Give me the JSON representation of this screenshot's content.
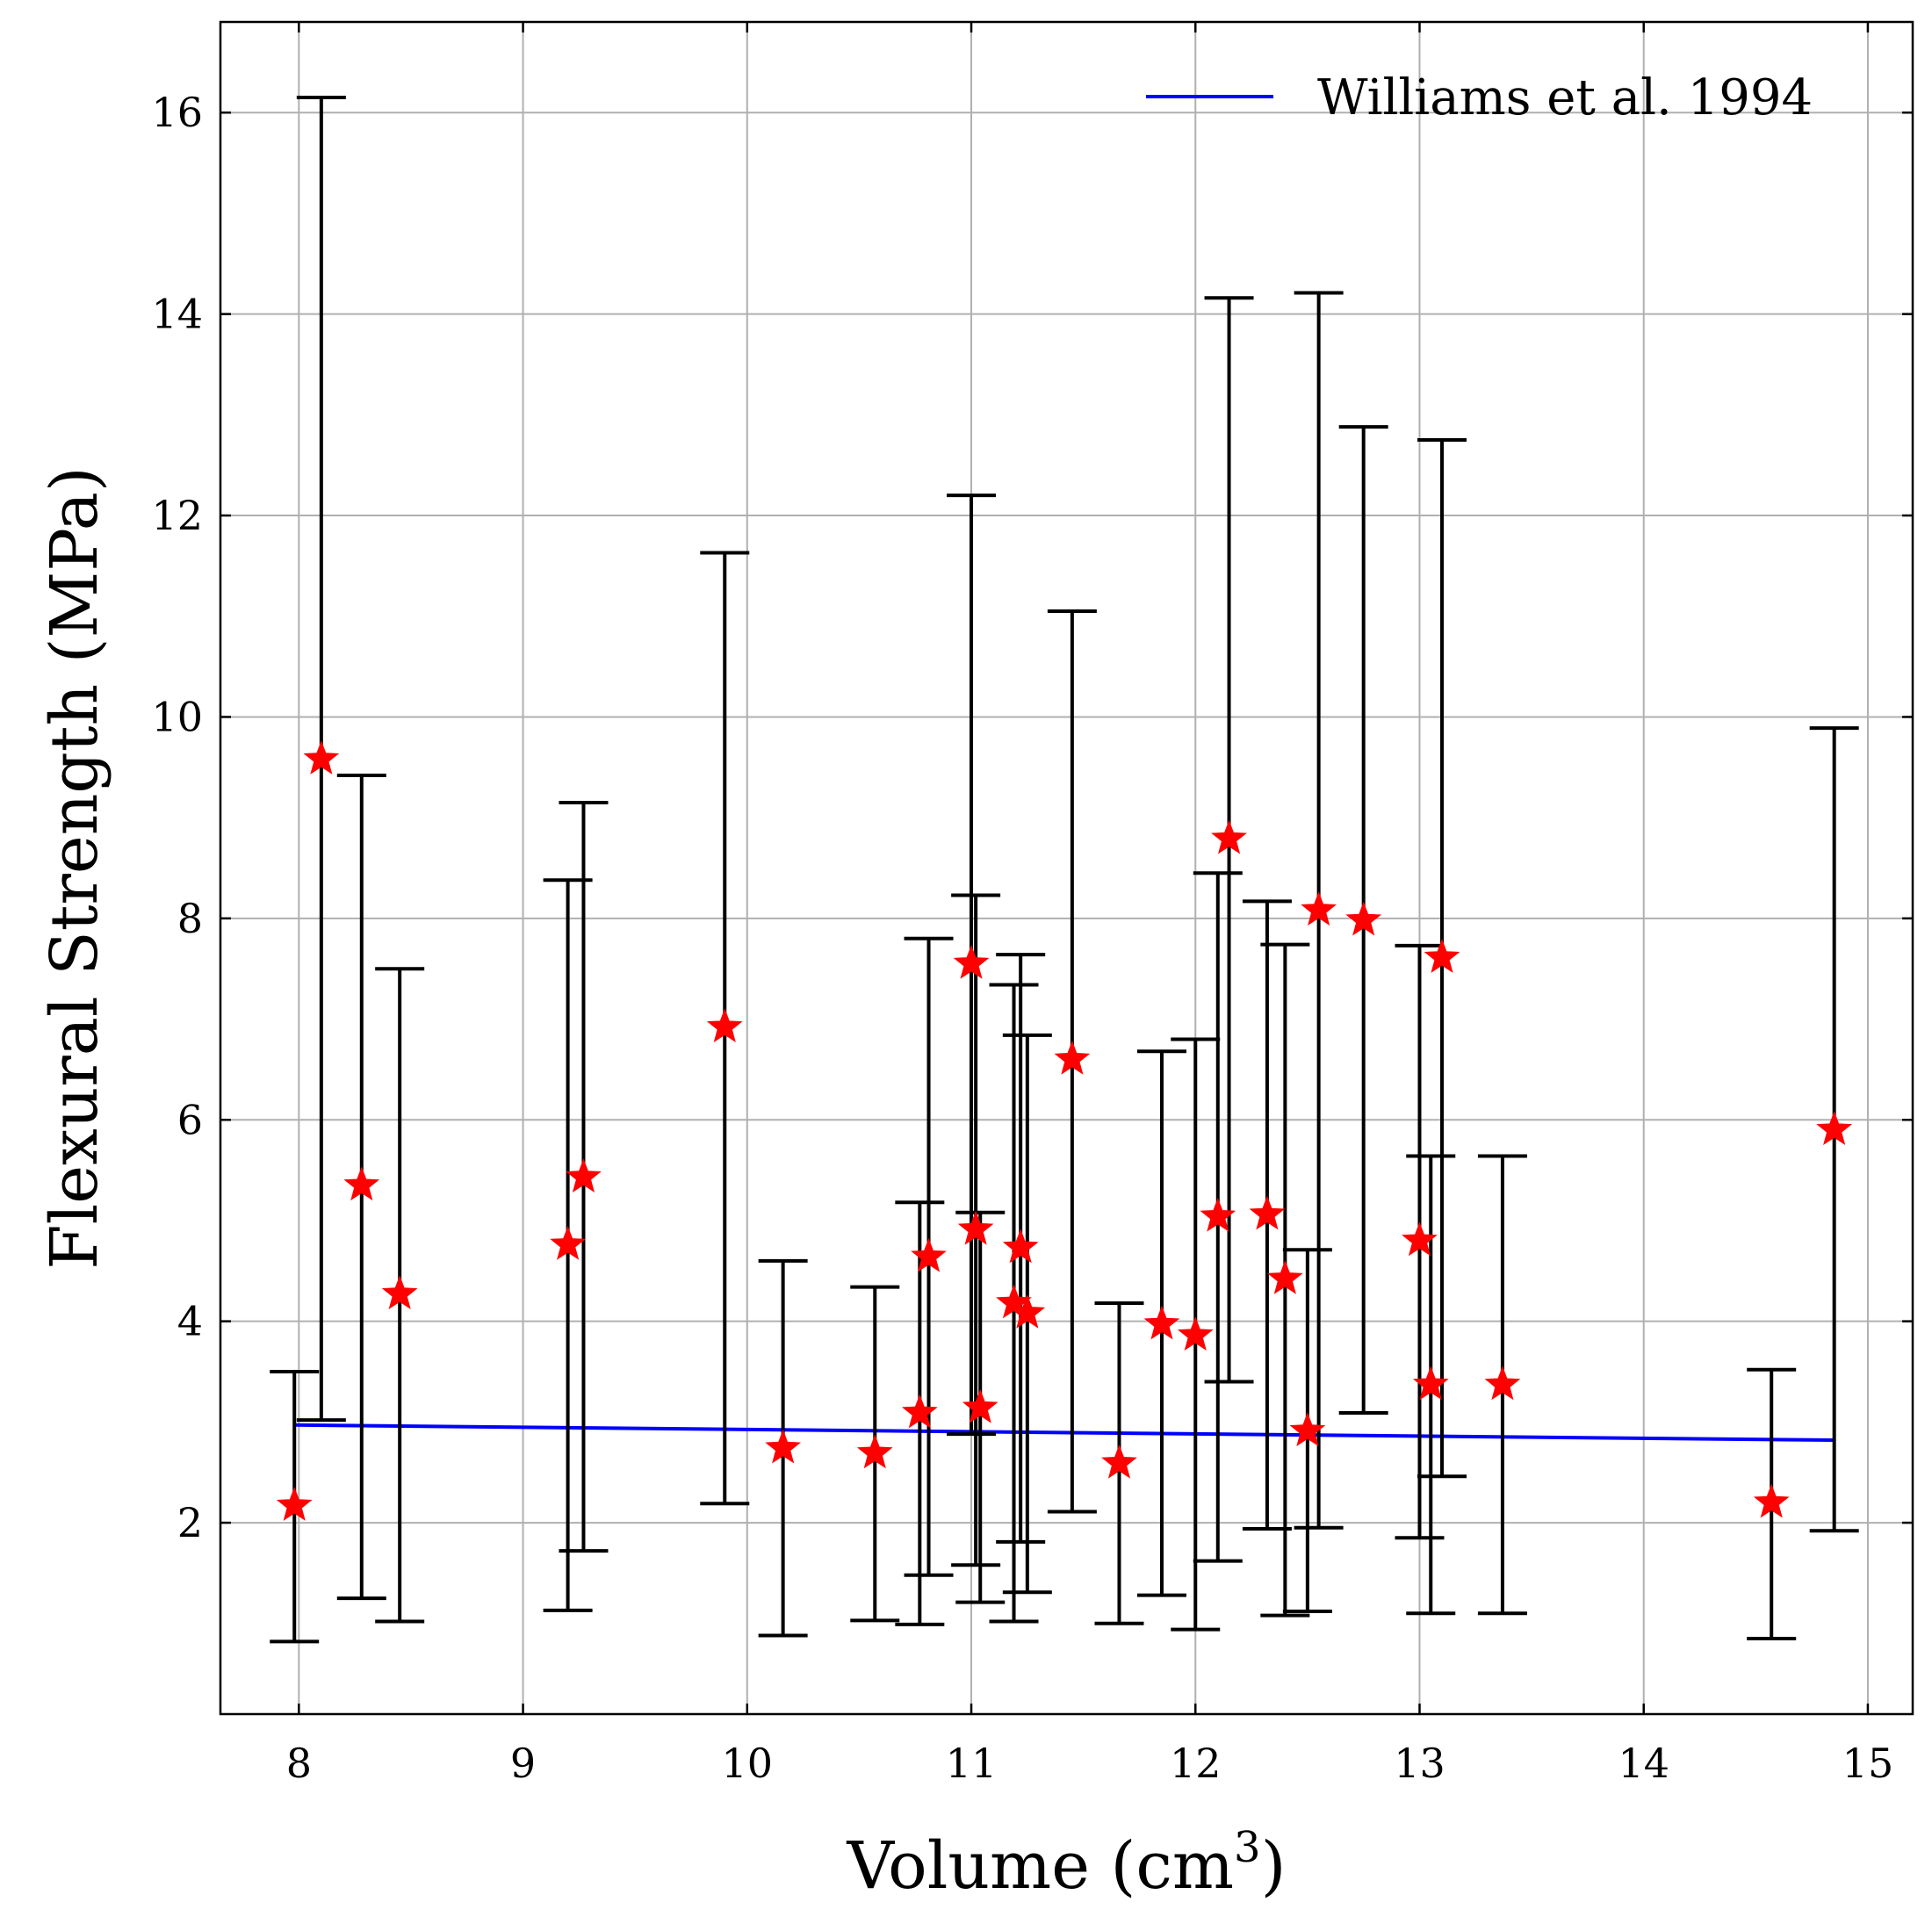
{
  "chart_data": {
    "type": "scatter",
    "xlabel": "Volume (cm",
    "xlabel_sup": "3",
    "xlabel_close": ")",
    "ylabel": "Flexural Strength (MPa)",
    "xlim": [
      7.65,
      15.2
    ],
    "ylim": [
      0.1,
      16.9
    ],
    "xticks": [
      8,
      9,
      10,
      11,
      12,
      13,
      14,
      15
    ],
    "yticks": [
      2,
      4,
      6,
      8,
      10,
      12,
      14,
      16
    ],
    "grid": true,
    "legend": {
      "position": "top-right",
      "entries": [
        {
          "label": "Williams et al. 1994",
          "color": "#0000ff"
        }
      ]
    },
    "colors": {
      "points": "#ff0000",
      "errorbars": "#000000",
      "line": "#0000ff",
      "grid": "#b0b0b0"
    },
    "series": [
      {
        "kind": "errorbar-points",
        "marker": "star",
        "points": [
          {
            "x": 7.98,
            "y": 2.17,
            "low": 0.82,
            "high": 3.5
          },
          {
            "x": 8.1,
            "y": 9.58,
            "low": 3.02,
            "high": 16.15
          },
          {
            "x": 8.28,
            "y": 5.35,
            "low": 1.25,
            "high": 9.42
          },
          {
            "x": 8.45,
            "y": 4.27,
            "low": 1.02,
            "high": 7.5
          },
          {
            "x": 9.2,
            "y": 4.76,
            "low": 1.13,
            "high": 8.38
          },
          {
            "x": 9.27,
            "y": 5.43,
            "low": 1.72,
            "high": 9.15
          },
          {
            "x": 9.9,
            "y": 6.92,
            "low": 2.19,
            "high": 11.63
          },
          {
            "x": 10.16,
            "y": 2.74,
            "low": 0.88,
            "high": 4.6
          },
          {
            "x": 10.57,
            "y": 2.69,
            "low": 1.03,
            "high": 4.34
          },
          {
            "x": 10.77,
            "y": 3.09,
            "low": 0.99,
            "high": 5.18
          },
          {
            "x": 10.81,
            "y": 4.64,
            "low": 1.48,
            "high": 7.8
          },
          {
            "x": 11.0,
            "y": 7.55,
            "low": 2.88,
            "high": 12.2
          },
          {
            "x": 11.02,
            "y": 4.91,
            "low": 1.58,
            "high": 8.23
          },
          {
            "x": 11.04,
            "y": 3.14,
            "low": 1.21,
            "high": 5.08
          },
          {
            "x": 11.19,
            "y": 4.18,
            "low": 1.02,
            "high": 7.34
          },
          {
            "x": 11.22,
            "y": 4.73,
            "low": 1.81,
            "high": 7.64
          },
          {
            "x": 11.25,
            "y": 4.08,
            "low": 1.31,
            "high": 6.84
          },
          {
            "x": 11.45,
            "y": 6.6,
            "low": 2.11,
            "high": 11.05
          },
          {
            "x": 11.66,
            "y": 2.59,
            "low": 1.0,
            "high": 4.18
          },
          {
            "x": 11.85,
            "y": 3.97,
            "low": 1.28,
            "high": 6.68
          },
          {
            "x": 12.0,
            "y": 3.86,
            "low": 0.94,
            "high": 6.8
          },
          {
            "x": 12.1,
            "y": 5.04,
            "low": 1.62,
            "high": 8.45
          },
          {
            "x": 12.15,
            "y": 8.79,
            "low": 3.4,
            "high": 14.16
          },
          {
            "x": 12.32,
            "y": 5.06,
            "low": 1.94,
            "high": 8.17
          },
          {
            "x": 12.4,
            "y": 4.42,
            "low": 1.08,
            "high": 7.74
          },
          {
            "x": 12.5,
            "y": 2.91,
            "low": 1.12,
            "high": 4.71
          },
          {
            "x": 12.55,
            "y": 8.08,
            "low": 1.95,
            "high": 14.21
          },
          {
            "x": 12.75,
            "y": 7.98,
            "low": 3.09,
            "high": 12.88
          },
          {
            "x": 13.0,
            "y": 4.8,
            "low": 1.85,
            "high": 7.73
          },
          {
            "x": 13.05,
            "y": 3.37,
            "low": 1.1,
            "high": 5.64
          },
          {
            "x": 13.1,
            "y": 7.61,
            "low": 2.46,
            "high": 12.75
          },
          {
            "x": 13.37,
            "y": 3.37,
            "low": 1.1,
            "high": 5.64
          },
          {
            "x": 14.57,
            "y": 2.2,
            "low": 0.85,
            "high": 3.52
          },
          {
            "x": 14.85,
            "y": 5.9,
            "low": 1.92,
            "high": 9.89
          }
        ]
      },
      {
        "name": "Williams et al. 1994",
        "kind": "line",
        "x": [
          7.98,
          14.85
        ],
        "y": [
          2.97,
          2.82
        ]
      }
    ]
  }
}
